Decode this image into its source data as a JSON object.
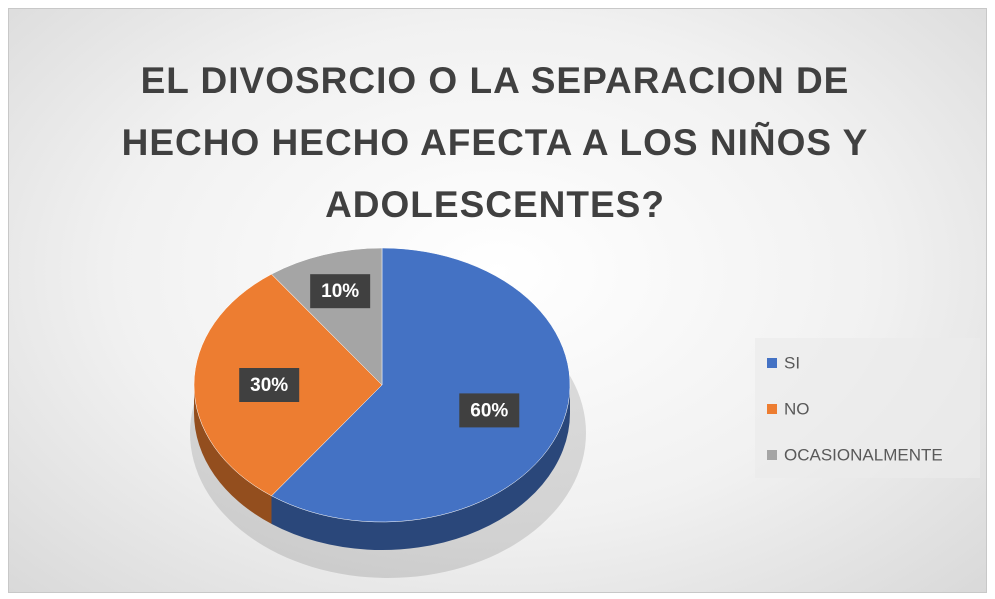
{
  "chart_data": {
    "type": "pie",
    "title": "EL DIVOSRCIO O LA SEPARACION DE HECHO HECHO AFECTA A LOS NIÑOS Y ADOLESCENTES?",
    "categories": [
      "SI",
      "NO",
      "OCASIONALMENTE"
    ],
    "values": [
      60,
      30,
      10
    ],
    "value_labels": [
      "60%",
      "30%",
      "10%"
    ],
    "colors": [
      "#4472c4",
      "#ed7d31",
      "#a5a5a5"
    ],
    "legend": "right"
  }
}
